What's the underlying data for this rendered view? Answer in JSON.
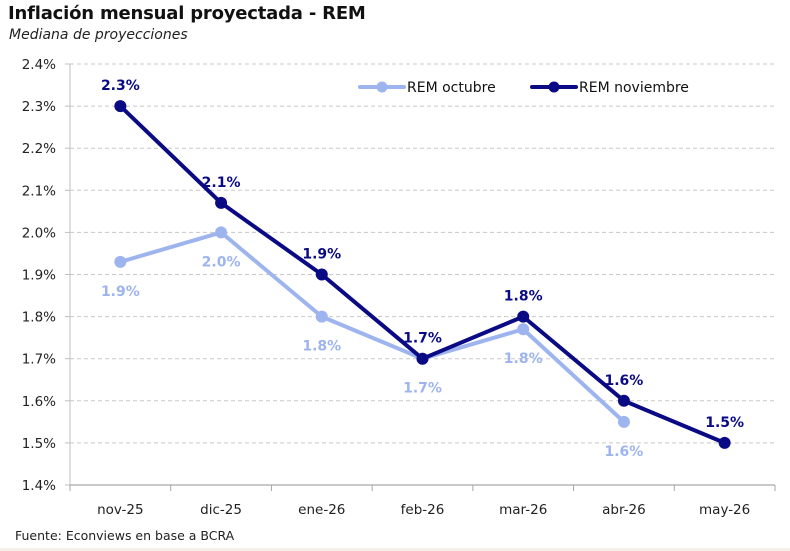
{
  "header": {
    "title": "Inflación mensual proyectada - REM",
    "subtitle": "Mediana de proyecciones"
  },
  "footer": {
    "source": "Fuente: Econviews en base a BCRA"
  },
  "chart_data": {
    "type": "line",
    "title": "Inflación mensual proyectada - REM",
    "subtitle": "Mediana de proyecciones",
    "xlabel": "",
    "ylabel": "",
    "categories": [
      "nov-25",
      "dic-25",
      "ene-26",
      "feb-26",
      "mar-26",
      "abr-26",
      "may-26"
    ],
    "ylim": [
      1.4,
      2.4
    ],
    "yticks": [
      1.4,
      1.5,
      1.6,
      1.7,
      1.8,
      1.9,
      2.0,
      2.1,
      2.2,
      2.3,
      2.4
    ],
    "ytick_labels": [
      "1.4%",
      "1.5%",
      "1.6%",
      "1.7%",
      "1.8%",
      "1.9%",
      "2.0%",
      "2.1%",
      "2.2%",
      "2.3%",
      "2.4%"
    ],
    "grid": true,
    "legend_position": "top-right",
    "series": [
      {
        "name": "REM octubre",
        "color": "#9db4ee",
        "values": [
          1.93,
          2.0,
          1.8,
          1.7,
          1.77,
          1.55,
          null
        ],
        "labels": [
          "1.9%",
          "2.0%",
          "1.8%",
          "1.7%",
          "1.8%",
          "1.6%",
          null
        ],
        "label_position": "below"
      },
      {
        "name": "REM noviembre",
        "color": "#0a0a85",
        "values": [
          2.3,
          2.07,
          1.9,
          1.7,
          1.8,
          1.6,
          1.5
        ],
        "labels": [
          "2.3%",
          "2.1%",
          "1.9%",
          "1.7%",
          "1.8%",
          "1.6%",
          "1.5%"
        ],
        "label_position": "above"
      }
    ]
  }
}
